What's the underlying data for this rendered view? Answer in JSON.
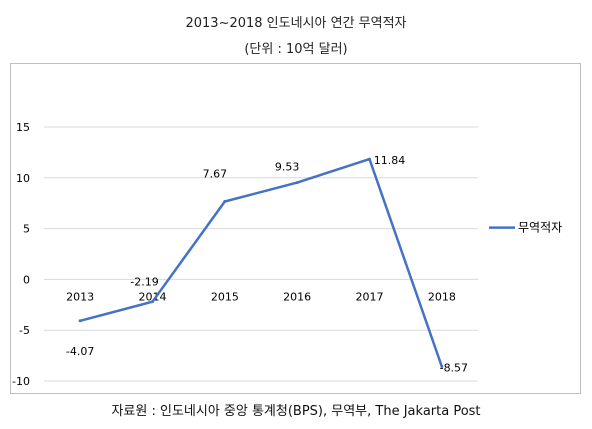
{
  "chart_data": {
    "type": "line",
    "title": "2013~2018 인도네시아 연간 무역적자",
    "subtitle": "(단위 : 10억 달러)",
    "categories": [
      "2013",
      "2014",
      "2015",
      "2016",
      "2017",
      "2018"
    ],
    "series": [
      {
        "name": "무역적자",
        "values": [
          -4.07,
          -2.19,
          7.67,
          9.53,
          11.84,
          -8.57
        ],
        "labels": [
          "-4.07",
          "-2.19",
          "7.67",
          "9.53",
          "11.84",
          "-8.57"
        ],
        "color": "#4472C4"
      }
    ],
    "ylim": [
      -10,
      15
    ],
    "yticks": [
      15,
      10,
      5,
      0,
      -5,
      -10
    ],
    "grid": true,
    "legend": "right"
  },
  "caption": "자료원 : 인도네시아 중앙 통계청(BPS), 무역부, The Jakarta Post"
}
